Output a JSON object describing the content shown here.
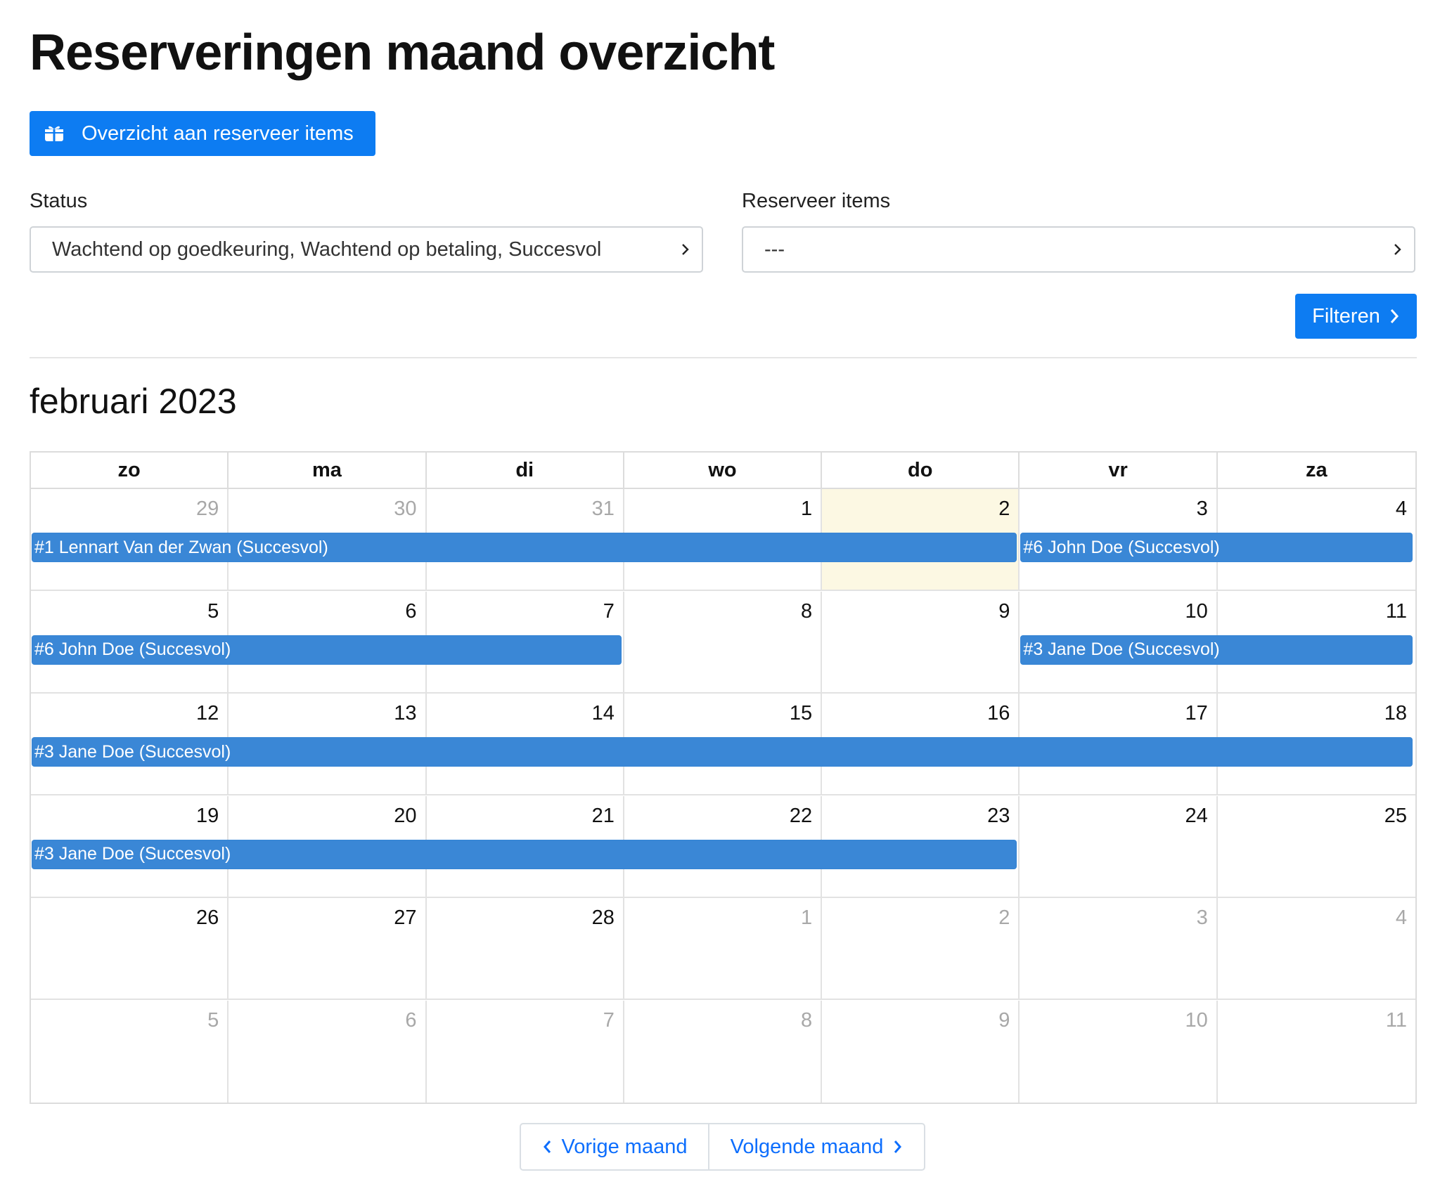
{
  "header": {
    "title": "Reserveringen maand overzicht"
  },
  "actions": {
    "items_button_label": "Overzicht aan reserveer items",
    "filter_button_label": "Filteren"
  },
  "filters": {
    "status": {
      "label": "Status",
      "value": "Wachtend op goedkeuring, Wachtend op betaling, Succesvol"
    },
    "items": {
      "label": "Reserveer items",
      "value": "---"
    }
  },
  "calendar": {
    "month_title": "februari 2023",
    "weekdays": [
      "zo",
      "ma",
      "di",
      "wo",
      "do",
      "vr",
      "za"
    ],
    "today": {
      "week": 0,
      "day": 4
    },
    "weeks": [
      [
        {
          "n": "29",
          "o": true
        },
        {
          "n": "30",
          "o": true
        },
        {
          "n": "31",
          "o": true
        },
        {
          "n": "1",
          "o": false
        },
        {
          "n": "2",
          "o": false
        },
        {
          "n": "3",
          "o": false
        },
        {
          "n": "4",
          "o": false
        }
      ],
      [
        {
          "n": "5",
          "o": false
        },
        {
          "n": "6",
          "o": false
        },
        {
          "n": "7",
          "o": false
        },
        {
          "n": "8",
          "o": false
        },
        {
          "n": "9",
          "o": false
        },
        {
          "n": "10",
          "o": false
        },
        {
          "n": "11",
          "o": false
        }
      ],
      [
        {
          "n": "12",
          "o": false
        },
        {
          "n": "13",
          "o": false
        },
        {
          "n": "14",
          "o": false
        },
        {
          "n": "15",
          "o": false
        },
        {
          "n": "16",
          "o": false
        },
        {
          "n": "17",
          "o": false
        },
        {
          "n": "18",
          "o": false
        }
      ],
      [
        {
          "n": "19",
          "o": false
        },
        {
          "n": "20",
          "o": false
        },
        {
          "n": "21",
          "o": false
        },
        {
          "n": "22",
          "o": false
        },
        {
          "n": "23",
          "o": false
        },
        {
          "n": "24",
          "o": false
        },
        {
          "n": "25",
          "o": false
        }
      ],
      [
        {
          "n": "26",
          "o": false
        },
        {
          "n": "27",
          "o": false
        },
        {
          "n": "28",
          "o": false
        },
        {
          "n": "1",
          "o": true
        },
        {
          "n": "2",
          "o": true
        },
        {
          "n": "3",
          "o": true
        },
        {
          "n": "4",
          "o": true
        }
      ],
      [
        {
          "n": "5",
          "o": true
        },
        {
          "n": "6",
          "o": true
        },
        {
          "n": "7",
          "o": true
        },
        {
          "n": "8",
          "o": true
        },
        {
          "n": "9",
          "o": true
        },
        {
          "n": "10",
          "o": true
        },
        {
          "n": "11",
          "o": true
        }
      ]
    ],
    "events": [
      {
        "week": 0,
        "start": 0,
        "end": 4,
        "label": "#1 Lennart Van der Zwan (Succesvol)"
      },
      {
        "week": 0,
        "start": 5,
        "end": 6,
        "label": "#6 John Doe (Succesvol)"
      },
      {
        "week": 1,
        "start": 0,
        "end": 2,
        "label": "#6 John Doe (Succesvol)"
      },
      {
        "week": 1,
        "start": 5,
        "end": 6,
        "label": "#3 Jane Doe (Succesvol)"
      },
      {
        "week": 2,
        "start": 0,
        "end": 6,
        "label": "#3 Jane Doe (Succesvol)"
      },
      {
        "week": 3,
        "start": 0,
        "end": 4,
        "label": "#3 Jane Doe (Succesvol)"
      }
    ]
  },
  "pager": {
    "prev_label": "Vorige maand",
    "next_label": "Volgende maand"
  },
  "colors": {
    "primary": "#0d7cf2",
    "event": "#3a87d6",
    "today": "#fcf8e3",
    "link": "#0d6efd"
  },
  "icons": {
    "items_button": "gift-icon",
    "filter_button": "chevron-right-icon",
    "select": "chevron-right-icon",
    "prev": "chevron-left-icon",
    "next": "chevron-right-icon"
  }
}
